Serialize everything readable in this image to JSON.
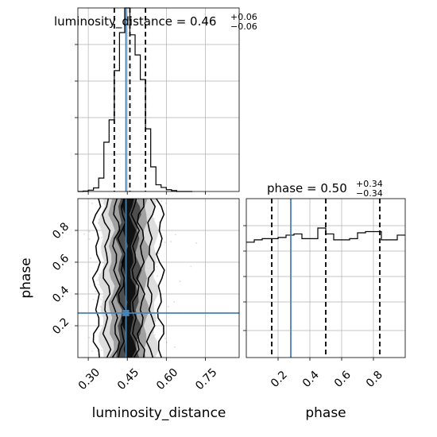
{
  "chart_data": {
    "type": "corner",
    "parameters": [
      "luminosity_distance",
      "phase"
    ],
    "truths": {
      "luminosity_distance": 0.445,
      "phase": 0.28
    },
    "grid": true,
    "panels": [
      {
        "id": "hist-luminosity-distance",
        "type": "histogram-step",
        "parameter": "luminosity_distance",
        "title": {
          "main": "luminosity_distance = 0.46",
          "plus": "+0.06",
          "minus": "−0.06"
        },
        "quantiles": [
          0.4,
          0.46,
          0.52
        ],
        "xlim": [
          0.26,
          0.88
        ],
        "ylim": [
          0,
          410
        ],
        "bin_edges": [
          0.26,
          0.28,
          0.3,
          0.32,
          0.34,
          0.36,
          0.38,
          0.4,
          0.42,
          0.44,
          0.46,
          0.48,
          0.5,
          0.52,
          0.54,
          0.56,
          0.58,
          0.6,
          0.62,
          0.64,
          0.66,
          0.68,
          0.7
        ],
        "counts": [
          0,
          1,
          3,
          8,
          30,
          110,
          160,
          270,
          355,
          410,
          350,
          305,
          250,
          140,
          55,
          15,
          9,
          4,
          2,
          0,
          0,
          0
        ]
      },
      {
        "id": "hist-phase",
        "type": "histogram-step",
        "parameter": "phase",
        "title": {
          "main": "phase = 0.50",
          "plus": "+0.34",
          "minus": "−0.34"
        },
        "quantiles": [
          0.16,
          0.5,
          0.84
        ],
        "xlim": [
          0,
          1
        ],
        "ylim": [
          0,
          1.35
        ],
        "bin_edges": [
          0.0,
          0.05,
          0.1,
          0.15,
          0.2,
          0.25,
          0.3,
          0.35,
          0.4,
          0.45,
          0.5,
          0.55,
          0.6,
          0.65,
          0.7,
          0.75,
          0.8,
          0.85,
          0.9,
          0.95,
          1.0
        ],
        "counts": [
          0.98,
          1.0,
          1.01,
          1.01,
          1.02,
          1.04,
          1.05,
          1.01,
          1.01,
          1.1,
          1.05,
          1.0,
          1.0,
          1.01,
          1.06,
          1.07,
          1.07,
          1.0,
          1.0,
          1.04
        ]
      },
      {
        "id": "scatter-2d",
        "type": "2d-density",
        "x_parameter": "luminosity_distance",
        "y_parameter": "phase",
        "xlim": [
          0.26,
          0.88
        ],
        "ylim": [
          0,
          1
        ],
        "x_center": 0.455,
        "x_spread": 0.04
      }
    ],
    "axes": {
      "x_luminosity_distance": {
        "label": "luminosity_distance",
        "ticks": [
          "0.30",
          "0.45",
          "0.60",
          "0.75"
        ],
        "tick_values": [
          0.3,
          0.45,
          0.6,
          0.75
        ]
      },
      "x_phase": {
        "label": "phase",
        "ticks": [
          "0.2",
          "0.4",
          "0.6",
          "0.8"
        ],
        "tick_values": [
          0.2,
          0.4,
          0.6,
          0.8
        ]
      },
      "y_phase": {
        "label": "phase",
        "ticks": [
          "0.2",
          "0.4",
          "0.6",
          "0.8"
        ],
        "tick_values": [
          0.2,
          0.4,
          0.6,
          0.8
        ]
      }
    },
    "colors": {
      "truth": "#4682b4",
      "grid": "#b0b0b0",
      "hist": "#000000",
      "points": "#000000"
    }
  }
}
